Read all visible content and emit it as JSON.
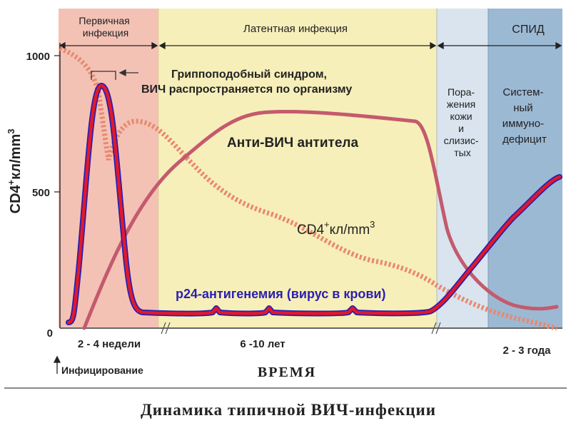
{
  "title": "Динамика типичной ВИЧ-инфекции",
  "phases": {
    "primary": "Первичная инфекция",
    "latent": "Латентная инфекция",
    "aids": "СПИД"
  },
  "phase_notes": {
    "skin": [
      "Пора-",
      "жения",
      "кожи",
      "и",
      "слизис-",
      "тых"
    ],
    "immuno": [
      "Систем-",
      "ный",
      "иммуно-",
      "дефицит"
    ]
  },
  "annotations": {
    "flu_line1": "Гриппоподобный синдром,",
    "flu_line2": "ВИЧ распространяется по организму",
    "antibodies": "Анти-ВИЧ  антитела",
    "cd4_curve": "CD4",
    "cd4_sup": "+",
    "cd4_unit": "кл/mm",
    "cd4_exp": "3",
    "p24": "р24-антигенемия (вирус в крови)"
  },
  "y_axis": {
    "label": "CD4",
    "label_sup": "+",
    "label_unit": "кл/mm",
    "label_exp": "3",
    "ticks": [
      "1000",
      "500",
      "0"
    ]
  },
  "x_axis": {
    "label": "ВРЕМЯ",
    "ticks": [
      "2 - 4 недели",
      "6 -10 лет",
      "2 - 3 года"
    ],
    "infection": "Инфицирование"
  },
  "colors": {
    "primary_zone": "#f3c2b5",
    "latent_zone": "#f7efb9",
    "skin_zone": "#d9e4ee",
    "aids_zone": "#9cb9d4",
    "antibody_curve": "#c45a6e",
    "cd4_dashed": "#e8896f",
    "p24_red": "#e0182a",
    "p24_blue": "#2a1fb0"
  }
}
